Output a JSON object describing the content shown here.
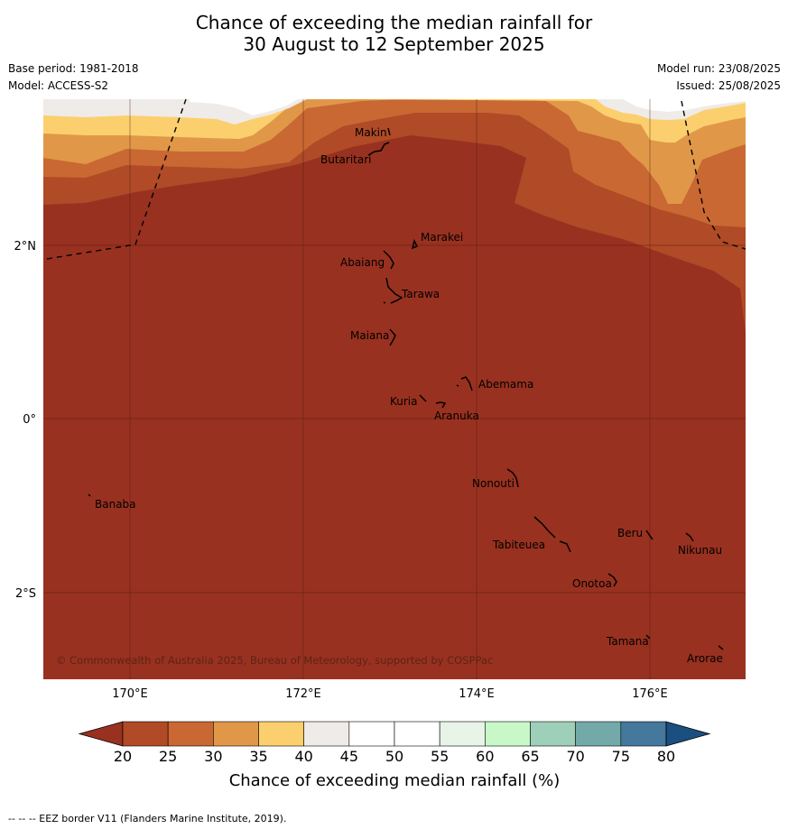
{
  "title": {
    "line1": "Chance of exceeding the median rainfall for",
    "line2": "30 August to 12 September 2025"
  },
  "meta": {
    "base_period": "Base period: 1981-2018",
    "model": "Model: ACCESS-S2",
    "model_run": "Model run: 23/08/2025",
    "issued": "Issued: 25/08/2025"
  },
  "axes": {
    "x_ticks": [
      "170°E",
      "172°E",
      "174°E",
      "176°E"
    ],
    "y_ticks": [
      "2°N",
      "0°",
      "2°S"
    ]
  },
  "places": {
    "makin": "Makin",
    "butaritari": "Butaritari",
    "marakei": "Marakei",
    "abaiang": "Abaiang",
    "tarawa": "Tarawa",
    "maiana": "Maiana",
    "abemama": "Abemama",
    "kuria": "Kuria",
    "aranuka": "Aranuka",
    "nonouti": "Nonouti",
    "banaba": "Banaba",
    "tabiteuea": "Tabiteuea",
    "beru": "Beru",
    "nikunau": "Nikunau",
    "onotoa": "Onotoa",
    "tamana": "Tamana",
    "arorae": "Arorae"
  },
  "copyright": "© Commonwealth of Australia 2025, Bureau of Meteorology, supported by COSPPac",
  "colorbar": {
    "title": "Chance of exceeding median rainfall (%)",
    "ticks": [
      "20",
      "25",
      "30",
      "35",
      "40",
      "45",
      "50",
      "55",
      "60",
      "65",
      "70",
      "75",
      "80"
    ],
    "colors": [
      "#993120",
      "#b04a27",
      "#c96832",
      "#e09848",
      "#fccf6e",
      "#efebe8",
      "#ffffff",
      "#ffffff",
      "#e8f4e8",
      "#c8f8c8",
      "#9ecfb8",
      "#74a9aa",
      "#44789c",
      "#1a4f80"
    ]
  },
  "footnote": "--  --  -- EEZ border V11 (Flanders Marine Institute, 2019)."
}
